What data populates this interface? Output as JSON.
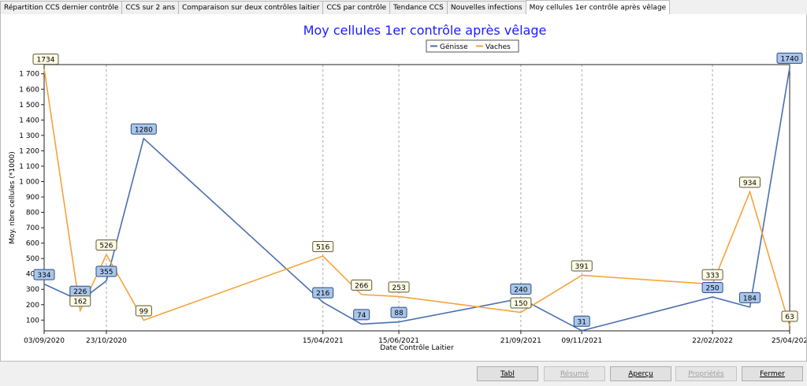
{
  "tabs": [
    {
      "label": "Répartition CCS dernier contrôle",
      "active": false
    },
    {
      "label": "CCS sur 2 ans",
      "active": false
    },
    {
      "label": "Comparaison sur deux contrôles laitier",
      "active": false
    },
    {
      "label": "CCS par contrôle",
      "active": false
    },
    {
      "label": "Tendance CCS",
      "active": false
    },
    {
      "label": "Nouvelles infections",
      "active": false
    },
    {
      "label": "Moy cellules 1er contrôle après vêlage",
      "active": true
    }
  ],
  "buttons": {
    "tabl": "Tabl",
    "resume": "Résumé",
    "apercu": "Aperçu",
    "proprietes": "Propriétés",
    "fermer": "Fermer"
  },
  "colors": {
    "title": "#1a1aff",
    "genisse": "#4a6fb1",
    "vaches": "#f5a33a",
    "genisse_label_bg": "#a9c6ea",
    "vaches_label_bg": "#fffbe6"
  },
  "chart_data": {
    "type": "line",
    "title": "Moy cellules 1er contrôle après vêlage",
    "xlabel": "Date Contrôle Laitier",
    "ylabel": "Moy. nbre cellules (*1000)",
    "ylim": [
      30,
      1760
    ],
    "yticks": [
      100,
      200,
      300,
      400,
      500,
      600,
      700,
      800,
      900,
      1000,
      1100,
      1200,
      1300,
      1400,
      1500,
      1600,
      1700
    ],
    "ytick_labels": [
      "100",
      "200",
      "300",
      "400",
      "500",
      "600",
      "700",
      "800",
      "900",
      "1 000",
      "1 100",
      "1 200",
      "1 300",
      "1 400",
      "1 500",
      "1 600",
      "1 700"
    ],
    "xlim": [
      "2020-09-03",
      "2022-04-25"
    ],
    "xticks": [
      "2020-09-03",
      "2020-10-23",
      "2021-04-15",
      "2021-06-15",
      "2021-09-21",
      "2021-11-09",
      "2022-02-22",
      "2022-04-25"
    ],
    "xtick_labels": [
      "03/09/2020",
      "23/10/2020",
      "15/04/2021",
      "15/06/2021",
      "21/09/2021",
      "09/11/2021",
      "22/02/2022",
      "25/04/202"
    ],
    "legend": "top-center",
    "series": [
      {
        "name": "Génisse",
        "points": [
          {
            "x": "2020-09-03",
            "y": 334
          },
          {
            "x": "2020-10-02",
            "y": 226
          },
          {
            "x": "2020-10-23",
            "y": 355
          },
          {
            "x": "2020-11-22",
            "y": 1280
          },
          {
            "x": "2021-04-15",
            "y": 216
          },
          {
            "x": "2021-05-16",
            "y": 74
          },
          {
            "x": "2021-06-15",
            "y": 88
          },
          {
            "x": "2021-09-21",
            "y": 240
          },
          {
            "x": "2021-11-09",
            "y": 31
          },
          {
            "x": "2022-02-22",
            "y": 250
          },
          {
            "x": "2022-03-24",
            "y": 184
          },
          {
            "x": "2022-04-25",
            "y": 1740
          }
        ]
      },
      {
        "name": "Vaches",
        "points": [
          {
            "x": "2020-09-03",
            "y": 1734
          },
          {
            "x": "2020-10-02",
            "y": 162
          },
          {
            "x": "2020-10-23",
            "y": 526
          },
          {
            "x": "2020-11-22",
            "y": 99
          },
          {
            "x": "2021-04-15",
            "y": 516
          },
          {
            "x": "2021-05-16",
            "y": 266
          },
          {
            "x": "2021-06-15",
            "y": 253
          },
          {
            "x": "2021-09-21",
            "y": 150
          },
          {
            "x": "2021-11-09",
            "y": 391
          },
          {
            "x": "2022-02-22",
            "y": 333
          },
          {
            "x": "2022-03-24",
            "y": 934
          },
          {
            "x": "2022-04-25",
            "y": 63
          }
        ]
      }
    ]
  }
}
